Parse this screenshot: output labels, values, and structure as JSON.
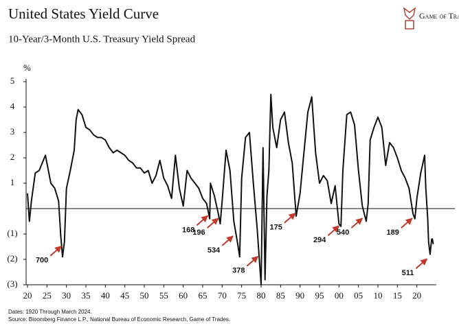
{
  "chart_data": {
    "type": "line",
    "title": "United States Yield Curve",
    "subtitle": "10-Year/3-Month U.S. Treasury Yield Spread",
    "logo": "Game of Trades",
    "y_unit": "%",
    "footnotes": [
      "Dates: 1920 Through March 2024.",
      "Source: Bloomberg Finance L.P., National Bureau of Economic Research, Game of Trades."
    ],
    "x": [
      1920,
      1920.5,
      1921,
      1922,
      1923,
      1924.6,
      1926,
      1927,
      1928,
      1928.5,
      1929,
      1929.5,
      1930,
      1931,
      1932,
      1932.5,
      1933,
      1934,
      1935,
      1936,
      1937,
      1938,
      1939,
      1940,
      1941,
      1942,
      1943,
      1944,
      1945,
      1946,
      1947,
      1948,
      1949,
      1950,
      1951,
      1952,
      1953,
      1954,
      1955,
      1956,
      1957,
      1958,
      1959,
      1960,
      1961,
      1962,
      1963,
      1964,
      1965,
      1966,
      1966.8,
      1967,
      1968,
      1969,
      1969.5,
      1970,
      1971,
      1972,
      1973,
      1974,
      1974.5,
      1975,
      1976,
      1977,
      1978,
      1979,
      1980,
      1980.5,
      1981,
      1981.5,
      1982,
      1982.5,
      1983,
      1984,
      1985,
      1986,
      1987,
      1988,
      1989,
      1990,
      1991,
      1992,
      1993,
      1994,
      1995,
      1996,
      1997,
      1998,
      1999,
      2000,
      2000.5,
      2001,
      2002,
      2003,
      2004,
      2005,
      2006,
      2007,
      2007.5,
      2008,
      2009,
      2010,
      2011,
      2012,
      2013,
      2014,
      2015,
      2016,
      2017,
      2018,
      2019,
      2019.5,
      2020,
      2021,
      2022,
      2022.3,
      2022.8,
      2023,
      2023.4,
      2023.8,
      2024,
      2024.2
    ],
    "series": [
      {
        "name": "10Y-3M spread",
        "color": "#111111",
        "values": [
          0.6,
          -0.5,
          0.3,
          1.4,
          1.5,
          2.1,
          1.0,
          0.8,
          0.3,
          -1.0,
          -1.9,
          -1.3,
          0.8,
          1.5,
          2.3,
          3.5,
          3.9,
          3.7,
          3.2,
          3.1,
          2.9,
          2.8,
          2.8,
          2.7,
          2.4,
          2.2,
          2.3,
          2.2,
          2.1,
          1.9,
          1.8,
          1.6,
          1.6,
          1.4,
          1.5,
          1.0,
          1.3,
          1.9,
          1.2,
          0.9,
          0.4,
          2.1,
          0.8,
          0.1,
          1.5,
          1.2,
          1.0,
          0.8,
          0.4,
          0.2,
          -0.4,
          1.0,
          0.5,
          -0.2,
          -0.6,
          0.3,
          2.3,
          1.5,
          -0.5,
          -1.4,
          -1.9,
          1.2,
          2.8,
          3.0,
          1.0,
          -0.8,
          -3.0,
          2.4,
          -2.8,
          0.5,
          1.5,
          4.5,
          3.2,
          2.4,
          3.5,
          3.8,
          2.6,
          1.8,
          -0.3,
          0.6,
          2.2,
          3.8,
          4.4,
          2.2,
          1.0,
          1.3,
          1.1,
          0.2,
          0.9,
          -0.6,
          -0.7,
          1.5,
          3.7,
          3.8,
          3.3,
          1.5,
          0.1,
          -0.5,
          0.2,
          2.7,
          3.2,
          3.6,
          3.2,
          1.7,
          2.6,
          2.4,
          2.0,
          1.5,
          1.2,
          0.8,
          -0.2,
          -0.4,
          0.4,
          1.4,
          2.1,
          0.8,
          -0.4,
          -1.3,
          -1.8,
          -1.2,
          -1.2,
          -1.4
        ]
      }
    ],
    "xlim": [
      1920,
      2025
    ],
    "ylim": [
      -3,
      5
    ],
    "xticks": [
      {
        "value": 1920,
        "label": "20"
      },
      {
        "value": 1925,
        "label": "25"
      },
      {
        "value": 1930,
        "label": "30"
      },
      {
        "value": 1935,
        "label": "35"
      },
      {
        "value": 1940,
        "label": "40"
      },
      {
        "value": 1945,
        "label": "45"
      },
      {
        "value": 1950,
        "label": "50"
      },
      {
        "value": 1955,
        "label": "55"
      },
      {
        "value": 1960,
        "label": "60"
      },
      {
        "value": 1965,
        "label": "65"
      },
      {
        "value": 1970,
        "label": "70"
      },
      {
        "value": 1975,
        "label": "75"
      },
      {
        "value": 1980,
        "label": "80"
      },
      {
        "value": 1985,
        "label": "85"
      },
      {
        "value": 1990,
        "label": "90"
      },
      {
        "value": 1995,
        "label": "95"
      },
      {
        "value": 2000,
        "label": "00"
      },
      {
        "value": 2005,
        "label": "05"
      },
      {
        "value": 2010,
        "label": "10"
      },
      {
        "value": 2015,
        "label": "15"
      },
      {
        "value": 2020,
        "label": "20"
      }
    ],
    "yticks": [
      5,
      4,
      3,
      2,
      1,
      {
        "value": -1,
        "label": "(1)"
      },
      {
        "value": -2,
        "label": "(2)"
      },
      {
        "value": -3,
        "label": "(3)"
      }
    ],
    "reference_line": 0,
    "annotation_color": "#c0392b",
    "annotations": [
      {
        "label": "700",
        "x": 1928.7,
        "y": -1.4
      },
      {
        "label": "168",
        "x": 1966.3,
        "y": -0.2
      },
      {
        "label": "196",
        "x": 1969,
        "y": -0.3
      },
      {
        "label": "534",
        "x": 1972.8,
        "y": -1.0
      },
      {
        "label": "378",
        "x": 1979.2,
        "y": -1.8
      },
      {
        "label": "175",
        "x": 1988.8,
        "y": -0.1
      },
      {
        "label": "294",
        "x": 2000,
        "y": -0.6
      },
      {
        "label": "540",
        "x": 2006,
        "y": -0.3
      },
      {
        "label": "189",
        "x": 2018.8,
        "y": -0.3
      },
      {
        "label": "511",
        "x": 2022.6,
        "y": -1.9
      }
    ]
  }
}
